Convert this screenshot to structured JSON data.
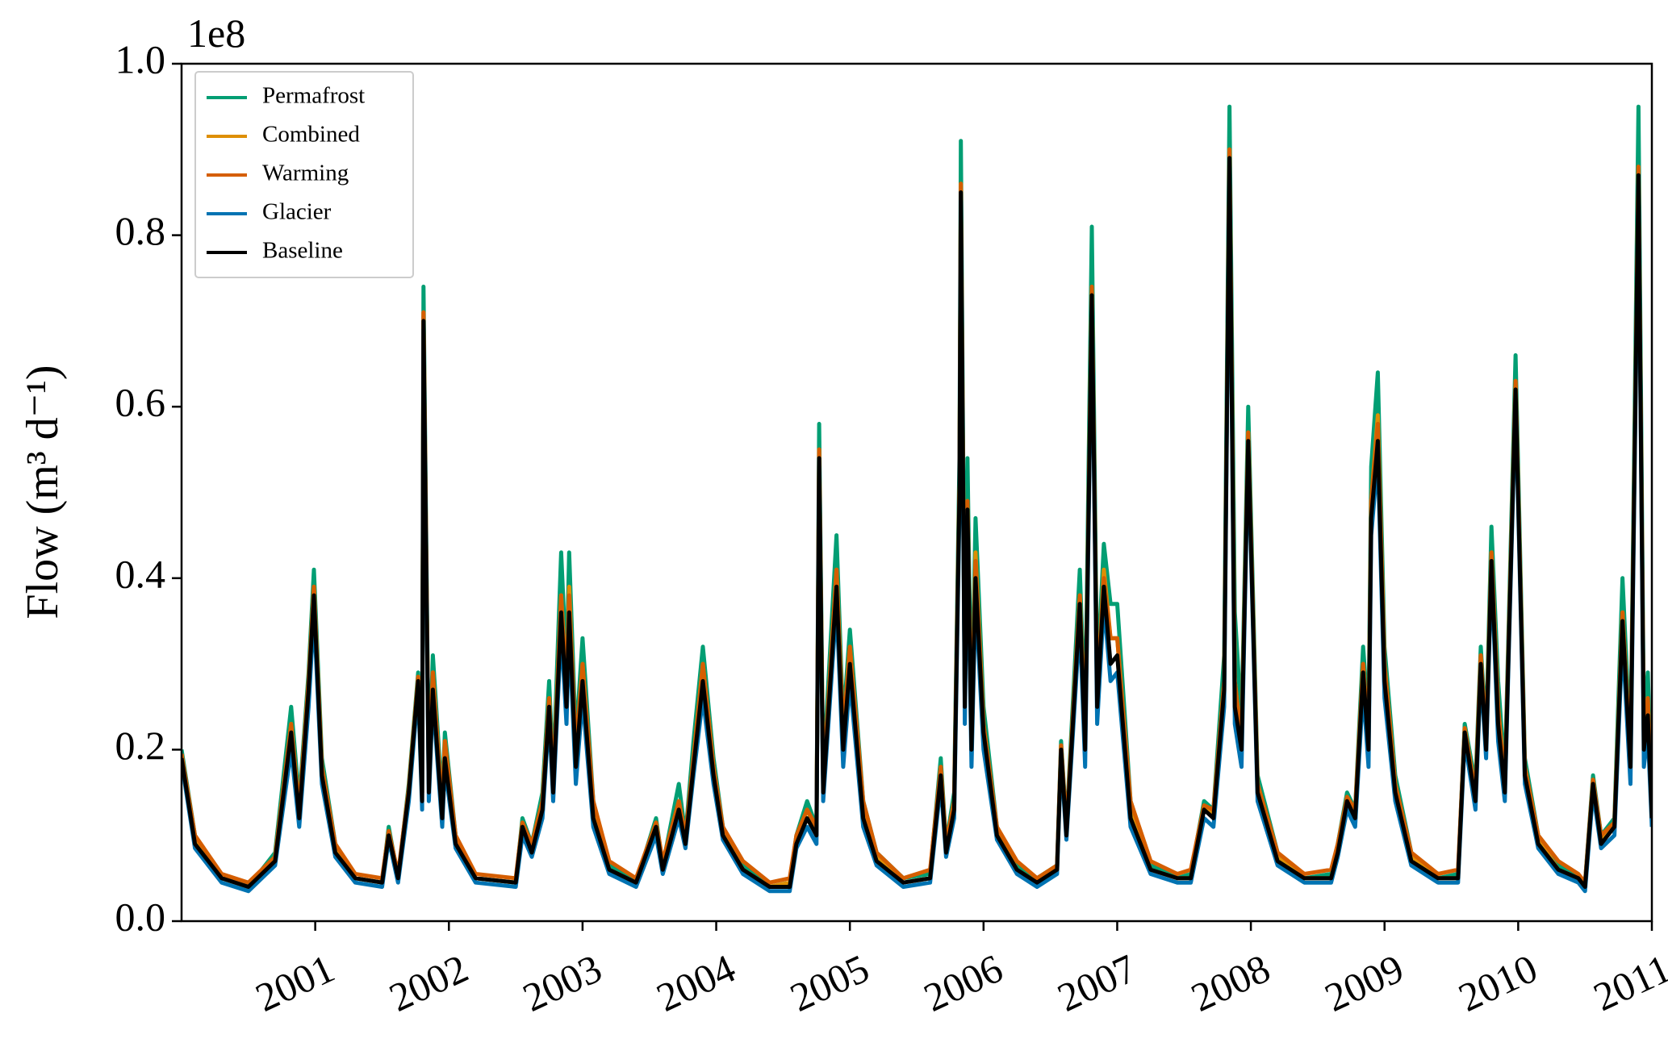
{
  "chart_data": {
    "type": "line",
    "y_offset_label": "1e8",
    "ylabel": "Flow (m³ d⁻¹)",
    "xlim": [
      2000,
      2011
    ],
    "xticks": [
      2001,
      2002,
      2003,
      2004,
      2005,
      2006,
      2007,
      2008,
      2009,
      2010,
      2011
    ],
    "ylim": [
      0,
      1
    ],
    "yticks": [
      {
        "value": 0,
        "label": "0.0"
      },
      0.2,
      0.4,
      0.6,
      0.8,
      {
        "value": 1,
        "label": "1.0"
      }
    ],
    "legend": "upper left",
    "x": [
      2000.0,
      2000.1,
      2000.3,
      2000.5,
      2000.7,
      2000.82,
      2000.88,
      2000.95,
      2000.99,
      2001.05,
      2001.15,
      2001.3,
      2001.5,
      2001.55,
      2001.62,
      2001.7,
      2001.77,
      2001.8,
      2001.81,
      2001.85,
      2001.88,
      2001.95,
      2001.97,
      2002.05,
      2002.2,
      2002.5,
      2002.55,
      2002.62,
      2002.7,
      2002.75,
      2002.78,
      2002.84,
      2002.88,
      2002.9,
      2002.95,
      2003.0,
      2003.08,
      2003.2,
      2003.4,
      2003.55,
      2003.6,
      2003.72,
      2003.77,
      2003.83,
      2003.9,
      2003.98,
      2004.05,
      2004.2,
      2004.4,
      2004.55,
      2004.6,
      2004.68,
      2004.75,
      2004.77,
      2004.8,
      2004.9,
      2004.95,
      2005.0,
      2005.1,
      2005.2,
      2005.4,
      2005.6,
      2005.68,
      2005.72,
      2005.78,
      2005.82,
      2005.83,
      2005.86,
      2005.88,
      2005.91,
      2005.94,
      2006.0,
      2006.1,
      2006.25,
      2006.4,
      2006.55,
      2006.58,
      2006.62,
      2006.72,
      2006.76,
      2006.81,
      2006.85,
      2006.9,
      2006.95,
      2007.0,
      2007.1,
      2007.25,
      2007.45,
      2007.55,
      2007.65,
      2007.72,
      2007.8,
      2007.84,
      2007.88,
      2007.93,
      2007.98,
      2008.05,
      2008.2,
      2008.4,
      2008.6,
      2008.65,
      2008.72,
      2008.78,
      2008.84,
      2008.88,
      2008.9,
      2008.95,
      2009.0,
      2009.08,
      2009.2,
      2009.4,
      2009.55,
      2009.6,
      2009.68,
      2009.72,
      2009.76,
      2009.8,
      2009.85,
      2009.9,
      2009.98,
      2010.05,
      2010.15,
      2010.3,
      2010.45,
      2010.5,
      2010.56,
      2010.62,
      2010.72,
      2010.78,
      2010.84,
      2010.9,
      2010.94,
      2010.97,
      2011.0
    ],
    "series": [
      {
        "name": "Permafrost",
        "color": "#029e73",
        "values": [
          0.2,
          0.1,
          0.05,
          0.04,
          0.08,
          0.25,
          0.14,
          0.29,
          0.41,
          0.19,
          0.09,
          0.05,
          0.045,
          0.11,
          0.05,
          0.16,
          0.29,
          0.16,
          0.74,
          0.17,
          0.31,
          0.14,
          0.22,
          0.1,
          0.05,
          0.045,
          0.12,
          0.09,
          0.15,
          0.28,
          0.17,
          0.43,
          0.29,
          0.43,
          0.21,
          0.33,
          0.14,
          0.065,
          0.045,
          0.12,
          0.065,
          0.16,
          0.1,
          0.21,
          0.32,
          0.19,
          0.11,
          0.065,
          0.04,
          0.045,
          0.1,
          0.14,
          0.11,
          0.58,
          0.17,
          0.45,
          0.23,
          0.34,
          0.14,
          0.08,
          0.05,
          0.055,
          0.19,
          0.09,
          0.15,
          0.54,
          0.91,
          0.28,
          0.54,
          0.23,
          0.47,
          0.25,
          0.11,
          0.065,
          0.05,
          0.065,
          0.21,
          0.11,
          0.41,
          0.23,
          0.81,
          0.28,
          0.44,
          0.37,
          0.37,
          0.14,
          0.065,
          0.05,
          0.055,
          0.14,
          0.13,
          0.31,
          0.95,
          0.36,
          0.23,
          0.6,
          0.17,
          0.08,
          0.05,
          0.055,
          0.09,
          0.15,
          0.13,
          0.32,
          0.23,
          0.53,
          0.64,
          0.32,
          0.17,
          0.08,
          0.05,
          0.055,
          0.23,
          0.16,
          0.32,
          0.22,
          0.46,
          0.28,
          0.17,
          0.66,
          0.19,
          0.1,
          0.065,
          0.05,
          0.045,
          0.17,
          0.1,
          0.12,
          0.4,
          0.2,
          0.95,
          0.23,
          0.29,
          0.14
        ]
      },
      {
        "name": "Combined",
        "color": "#de8f05",
        "values": [
          0.195,
          0.095,
          0.05,
          0.04,
          0.075,
          0.23,
          0.13,
          0.28,
          0.39,
          0.18,
          0.085,
          0.05,
          0.045,
          0.105,
          0.05,
          0.155,
          0.285,
          0.15,
          0.71,
          0.16,
          0.29,
          0.13,
          0.21,
          0.095,
          0.05,
          0.045,
          0.115,
          0.085,
          0.14,
          0.26,
          0.16,
          0.38,
          0.27,
          0.39,
          0.19,
          0.3,
          0.13,
          0.06,
          0.045,
          0.115,
          0.06,
          0.14,
          0.095,
          0.19,
          0.3,
          0.18,
          0.105,
          0.06,
          0.04,
          0.045,
          0.095,
          0.13,
          0.105,
          0.55,
          0.16,
          0.41,
          0.22,
          0.32,
          0.13,
          0.075,
          0.045,
          0.05,
          0.18,
          0.085,
          0.14,
          0.51,
          0.86,
          0.26,
          0.49,
          0.21,
          0.43,
          0.23,
          0.105,
          0.06,
          0.045,
          0.06,
          0.205,
          0.105,
          0.38,
          0.21,
          0.74,
          0.26,
          0.41,
          0.33,
          0.33,
          0.13,
          0.06,
          0.05,
          0.05,
          0.135,
          0.125,
          0.28,
          0.9,
          0.28,
          0.21,
          0.57,
          0.16,
          0.075,
          0.05,
          0.05,
          0.085,
          0.145,
          0.125,
          0.3,
          0.21,
          0.49,
          0.59,
          0.3,
          0.16,
          0.075,
          0.05,
          0.05,
          0.225,
          0.15,
          0.31,
          0.21,
          0.43,
          0.25,
          0.16,
          0.63,
          0.18,
          0.095,
          0.06,
          0.05,
          0.04,
          0.165,
          0.095,
          0.115,
          0.36,
          0.19,
          0.88,
          0.21,
          0.26,
          0.13
        ]
      },
      {
        "name": "Warming",
        "color": "#d55e00",
        "values": [
          0.195,
          0.1,
          0.055,
          0.045,
          0.075,
          0.23,
          0.13,
          0.28,
          0.39,
          0.18,
          0.09,
          0.055,
          0.05,
          0.105,
          0.055,
          0.155,
          0.285,
          0.15,
          0.71,
          0.16,
          0.29,
          0.13,
          0.21,
          0.1,
          0.055,
          0.05,
          0.115,
          0.09,
          0.14,
          0.26,
          0.16,
          0.38,
          0.27,
          0.38,
          0.2,
          0.3,
          0.14,
          0.07,
          0.05,
          0.115,
          0.07,
          0.14,
          0.1,
          0.19,
          0.3,
          0.18,
          0.11,
          0.07,
          0.045,
          0.05,
          0.1,
          0.13,
          0.11,
          0.55,
          0.16,
          0.41,
          0.22,
          0.32,
          0.14,
          0.08,
          0.05,
          0.06,
          0.18,
          0.09,
          0.14,
          0.51,
          0.86,
          0.26,
          0.49,
          0.21,
          0.42,
          0.23,
          0.11,
          0.07,
          0.05,
          0.065,
          0.205,
          0.11,
          0.38,
          0.21,
          0.74,
          0.26,
          0.4,
          0.33,
          0.33,
          0.14,
          0.07,
          0.055,
          0.06,
          0.135,
          0.13,
          0.28,
          0.9,
          0.28,
          0.21,
          0.57,
          0.16,
          0.08,
          0.055,
          0.06,
          0.09,
          0.145,
          0.13,
          0.3,
          0.21,
          0.49,
          0.58,
          0.3,
          0.16,
          0.08,
          0.055,
          0.06,
          0.225,
          0.15,
          0.31,
          0.21,
          0.43,
          0.25,
          0.16,
          0.63,
          0.18,
          0.1,
          0.07,
          0.055,
          0.045,
          0.165,
          0.1,
          0.115,
          0.36,
          0.19,
          0.88,
          0.21,
          0.26,
          0.13
        ]
      },
      {
        "name": "Glacier",
        "color": "#0173b2",
        "values": [
          0.185,
          0.085,
          0.045,
          0.035,
          0.065,
          0.2,
          0.11,
          0.25,
          0.36,
          0.16,
          0.075,
          0.045,
          0.04,
          0.095,
          0.045,
          0.14,
          0.27,
          0.13,
          0.69,
          0.14,
          0.26,
          0.11,
          0.18,
          0.085,
          0.045,
          0.04,
          0.1,
          0.075,
          0.12,
          0.24,
          0.14,
          0.34,
          0.23,
          0.34,
          0.16,
          0.26,
          0.11,
          0.055,
          0.04,
          0.1,
          0.055,
          0.12,
          0.085,
          0.17,
          0.26,
          0.16,
          0.095,
          0.055,
          0.035,
          0.035,
          0.085,
          0.11,
          0.09,
          0.53,
          0.14,
          0.37,
          0.18,
          0.28,
          0.11,
          0.065,
          0.04,
          0.045,
          0.16,
          0.075,
          0.12,
          0.48,
          0.84,
          0.23,
          0.46,
          0.18,
          0.38,
          0.2,
          0.095,
          0.055,
          0.04,
          0.055,
          0.19,
          0.095,
          0.35,
          0.18,
          0.72,
          0.23,
          0.37,
          0.28,
          0.29,
          0.11,
          0.055,
          0.045,
          0.045,
          0.12,
          0.11,
          0.25,
          0.88,
          0.23,
          0.18,
          0.55,
          0.14,
          0.065,
          0.045,
          0.045,
          0.075,
          0.13,
          0.11,
          0.27,
          0.18,
          0.45,
          0.54,
          0.26,
          0.14,
          0.065,
          0.045,
          0.045,
          0.21,
          0.13,
          0.29,
          0.19,
          0.41,
          0.21,
          0.14,
          0.61,
          0.16,
          0.085,
          0.055,
          0.045,
          0.035,
          0.15,
          0.085,
          0.1,
          0.33,
          0.16,
          0.86,
          0.18,
          0.22,
          0.11
        ]
      },
      {
        "name": "Baseline",
        "color": "#000000",
        "values": [
          0.19,
          0.09,
          0.05,
          0.04,
          0.07,
          0.22,
          0.12,
          0.27,
          0.38,
          0.17,
          0.08,
          0.05,
          0.045,
          0.1,
          0.05,
          0.15,
          0.28,
          0.14,
          0.7,
          0.15,
          0.27,
          0.12,
          0.19,
          0.09,
          0.05,
          0.045,
          0.11,
          0.08,
          0.13,
          0.25,
          0.15,
          0.36,
          0.25,
          0.36,
          0.18,
          0.28,
          0.12,
          0.06,
          0.045,
          0.11,
          0.06,
          0.13,
          0.09,
          0.18,
          0.28,
          0.17,
          0.1,
          0.06,
          0.04,
          0.04,
          0.09,
          0.12,
          0.1,
          0.54,
          0.15,
          0.39,
          0.2,
          0.3,
          0.12,
          0.07,
          0.045,
          0.05,
          0.17,
          0.08,
          0.13,
          0.5,
          0.85,
          0.25,
          0.48,
          0.2,
          0.4,
          0.22,
          0.1,
          0.06,
          0.045,
          0.06,
          0.2,
          0.1,
          0.37,
          0.2,
          0.73,
          0.25,
          0.39,
          0.3,
          0.31,
          0.12,
          0.06,
          0.05,
          0.05,
          0.13,
          0.12,
          0.27,
          0.89,
          0.25,
          0.2,
          0.56,
          0.15,
          0.07,
          0.05,
          0.05,
          0.08,
          0.14,
          0.12,
          0.29,
          0.2,
          0.47,
          0.56,
          0.28,
          0.15,
          0.07,
          0.05,
          0.05,
          0.22,
          0.14,
          0.3,
          0.2,
          0.42,
          0.23,
          0.15,
          0.62,
          0.17,
          0.09,
          0.06,
          0.05,
          0.04,
          0.16,
          0.09,
          0.11,
          0.35,
          0.18,
          0.87,
          0.2,
          0.24,
          0.12
        ]
      }
    ]
  }
}
